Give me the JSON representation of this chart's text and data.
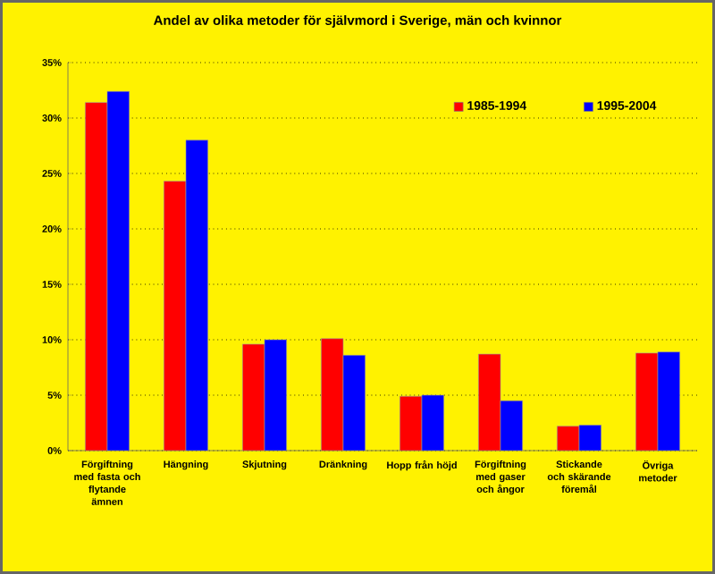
{
  "chart_data": {
    "type": "bar",
    "title": "Andel av olika metoder för självmord i Sverige, män och kvinnor",
    "categories": [
      "Förgiftning med fasta och flytande ämnen",
      "Hängning",
      "Skjutning",
      "Dränkning",
      "Hopp från höjd",
      "Förgiftning med gaser och ångor",
      "Stickande och skärande föremål",
      "Övriga metoder"
    ],
    "series": [
      {
        "name": "1985-1994",
        "color": "#ff0000",
        "values": [
          31.4,
          24.3,
          9.6,
          10.1,
          4.9,
          8.7,
          2.2,
          8.8
        ]
      },
      {
        "name": "1995-2004",
        "color": "#0000ff",
        "values": [
          32.4,
          28.0,
          10.0,
          8.6,
          5.0,
          4.5,
          2.3,
          8.9
        ]
      }
    ],
    "ylim": [
      0,
      35
    ],
    "yticks": [
      {
        "value": 0,
        "label": "0%"
      },
      {
        "value": 5,
        "label": "5%"
      },
      {
        "value": 10,
        "label": "10%"
      },
      {
        "value": 15,
        "label": "15%"
      },
      {
        "value": 20,
        "label": "20%"
      },
      {
        "value": 25,
        "label": "25%"
      },
      {
        "value": 30,
        "label": "30%"
      },
      {
        "value": 35,
        "label": "35%"
      }
    ],
    "grid": "y",
    "legend": "top right"
  }
}
